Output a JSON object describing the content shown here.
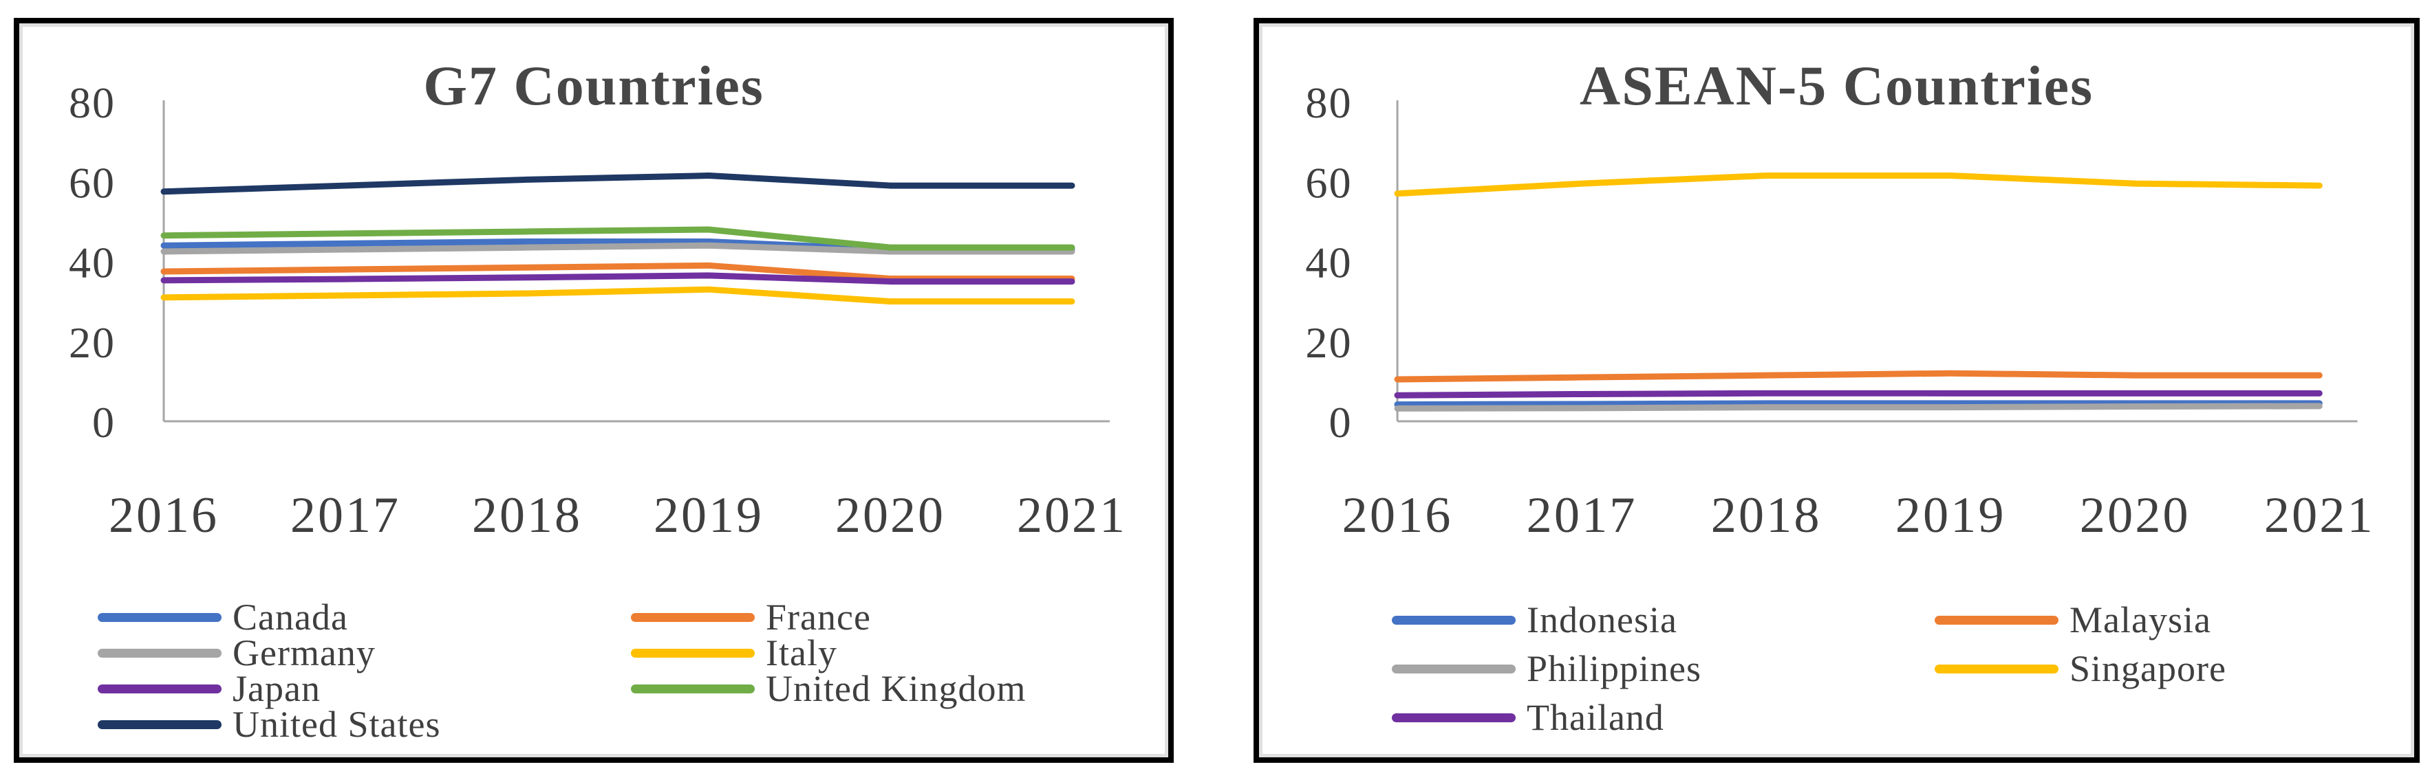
{
  "chart_data": [
    {
      "type": "line",
      "title": "G7 Countries",
      "categories": [
        "2016",
        "2017",
        "2018",
        "2019",
        "2020",
        "2021"
      ],
      "y_ticks": [
        80,
        60,
        40,
        20,
        0
      ],
      "ylim": [
        0,
        80
      ],
      "grid": false,
      "legend_position": "bottom",
      "series": [
        {
          "name": "Canada",
          "color": "#4472C4",
          "values": [
            44,
            44.5,
            45,
            45,
            43,
            43
          ]
        },
        {
          "name": "France",
          "color": "#ED7D31",
          "values": [
            37.5,
            38,
            38.5,
            39,
            35.7,
            35.7
          ]
        },
        {
          "name": "Germany",
          "color": "#A5A5A5",
          "values": [
            42.5,
            43,
            43.5,
            44,
            42.5,
            42.5
          ]
        },
        {
          "name": "Italy",
          "color": "#FFC000",
          "values": [
            31,
            31.5,
            32,
            33,
            30,
            30
          ]
        },
        {
          "name": "Japan",
          "color": "#7030A0",
          "values": [
            35.3,
            35.6,
            36,
            36.5,
            35,
            35
          ]
        },
        {
          "name": "United Kingdom",
          "color": "#70AD47",
          "values": [
            46.5,
            47,
            47.5,
            48,
            43.5,
            43.5
          ]
        },
        {
          "name": "United States",
          "color": "#1F3864",
          "values": [
            57.5,
            59,
            60.5,
            61.5,
            59,
            59
          ]
        }
      ]
    },
    {
      "type": "line",
      "title": "ASEAN-5 Countries",
      "categories": [
        "2016",
        "2017",
        "2018",
        "2019",
        "2020",
        "2021"
      ],
      "y_ticks": [
        80,
        60,
        40,
        20,
        0
      ],
      "ylim": [
        0,
        80
      ],
      "grid": false,
      "legend_position": "bottom",
      "series": [
        {
          "name": "Indonesia",
          "color": "#4472C4",
          "values": [
            4.2,
            4.3,
            4.5,
            4.5,
            4.5,
            4.5
          ]
        },
        {
          "name": "Malaysia",
          "color": "#ED7D31",
          "values": [
            10.5,
            11,
            11.5,
            12,
            11.5,
            11.5
          ]
        },
        {
          "name": "Philippines",
          "color": "#A5A5A5",
          "values": [
            3.2,
            3.3,
            3.5,
            3.5,
            3.7,
            3.8
          ]
        },
        {
          "name": "Singapore",
          "color": "#FFC000",
          "values": [
            57,
            59.5,
            61.5,
            61.5,
            59.5,
            59
          ]
        },
        {
          "name": "Thailand",
          "color": "#7030A0",
          "values": [
            6.5,
            6.8,
            7,
            7,
            7,
            7
          ]
        }
      ]
    }
  ]
}
